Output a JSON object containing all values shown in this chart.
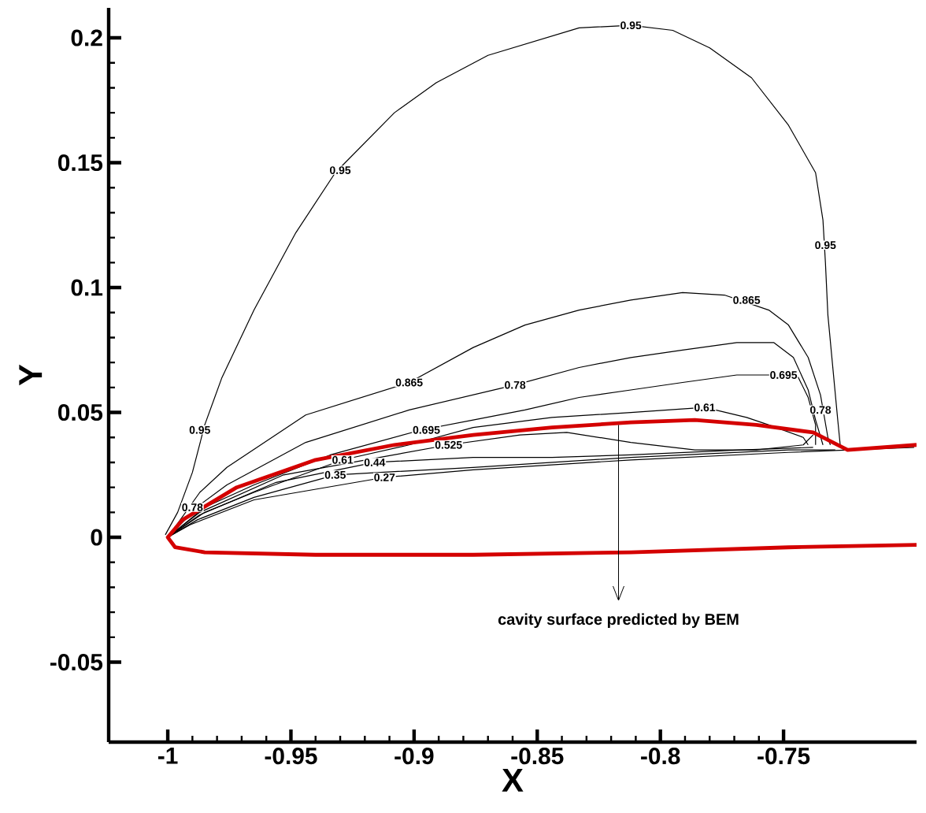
{
  "chart_data": {
    "type": "line",
    "xlabel": "X",
    "ylabel": "Y",
    "xlim": [
      -1.024,
      -0.696
    ],
    "ylim": [
      -0.082,
      0.212
    ],
    "xticks": [
      -1,
      -0.95,
      -0.9,
      -0.85,
      -0.8,
      -0.75
    ],
    "yticks": [
      -0.05,
      0,
      0.05,
      0.1,
      0.15,
      0.2
    ],
    "series": [
      {
        "color": "#000000",
        "x": [
          -1.001,
          -0.996,
          -0.99,
          -0.985,
          -0.978,
          -0.965,
          -0.948,
          -0.932,
          -0.908,
          -0.891,
          -0.87,
          -0.833,
          -0.812,
          -0.795,
          -0.78,
          -0.763,
          -0.748,
          -0.737,
          -0.734,
          -0.733,
          -0.732,
          -0.73,
          -0.728,
          -0.727
        ],
        "values": [
          0.001,
          0.01,
          0.026,
          0.045,
          0.064,
          0.091,
          0.122,
          0.146,
          0.17,
          0.182,
          0.193,
          0.204,
          0.205,
          0.203,
          0.196,
          0.184,
          0.165,
          0.146,
          0.127,
          0.11,
          0.089,
          0.068,
          0.047,
          0.037
        ]
      },
      {
        "color": "#000000",
        "x": [
          -1,
          -0.987,
          -0.976,
          -0.944,
          -0.902,
          -0.876,
          -0.855,
          -0.833,
          -0.812,
          -0.791,
          -0.774,
          -0.756,
          -0.748,
          -0.74,
          -0.735,
          -0.732,
          -0.731
        ],
        "values": [
          0,
          0.018,
          0.028,
          0.049,
          0.062,
          0.076,
          0.085,
          0.091,
          0.095,
          0.098,
          0.097,
          0.091,
          0.085,
          0.072,
          0.057,
          0.04,
          0.037
        ]
      },
      {
        "color": "#000000",
        "x": [
          -1,
          -0.987,
          -0.976,
          -0.944,
          -0.902,
          -0.859,
          -0.833,
          -0.812,
          -0.791,
          -0.769,
          -0.754,
          -0.746,
          -0.74,
          -0.737,
          -0.734
        ],
        "values": [
          0,
          0.013,
          0.021,
          0.038,
          0.051,
          0.061,
          0.068,
          0.072,
          0.075,
          0.078,
          0.078,
          0.072,
          0.059,
          0.047,
          0.037
        ]
      },
      {
        "color": "#000000",
        "x": [
          -1,
          -0.985,
          -0.965,
          -0.934,
          -0.897,
          -0.876,
          -0.855,
          -0.833,
          -0.812,
          -0.791,
          -0.769,
          -0.75,
          -0.744,
          -0.74,
          -0.737,
          -0.737
        ],
        "values": [
          0,
          0.012,
          0.021,
          0.033,
          0.043,
          0.047,
          0.051,
          0.056,
          0.059,
          0.062,
          0.065,
          0.065,
          0.064,
          0.056,
          0.045,
          0.037
        ]
      },
      {
        "color": "#000000",
        "x": [
          -1,
          -0.985,
          -0.965,
          -0.929,
          -0.902,
          -0.876,
          -0.844,
          -0.812,
          -0.782,
          -0.765,
          -0.756,
          -0.742,
          -0.74
        ],
        "values": [
          0,
          0.01,
          0.018,
          0.031,
          0.037,
          0.044,
          0.048,
          0.05,
          0.052,
          0.048,
          0.045,
          0.04,
          0.037
        ]
      },
      {
        "color": "#000000",
        "x": [
          -1,
          -0.987,
          -0.953,
          -0.914,
          -0.886,
          -0.857,
          -0.838,
          -0.812,
          -0.786,
          -0.761,
          -0.742,
          -0.738
        ],
        "values": [
          0,
          0.01,
          0.025,
          0.032,
          0.037,
          0.041,
          0.042,
          0.038,
          0.035,
          0.035,
          0.037,
          0.041
        ]
      },
      {
        "color": "#000000",
        "x": [
          -1,
          -0.987,
          -0.956,
          -0.916,
          -0.876,
          -0.844,
          -0.812,
          -0.767,
          -0.738
        ],
        "values": [
          0,
          0.009,
          0.022,
          0.03,
          0.032,
          0.032,
          0.033,
          0.035,
          0.036
        ]
      },
      {
        "color": "#000000",
        "x": [
          -1,
          -0.988,
          -0.965,
          -0.932,
          -0.876,
          -0.812,
          -0.748,
          -0.729
        ],
        "values": [
          0,
          0.007,
          0.016,
          0.025,
          0.028,
          0.032,
          0.035,
          0.035
        ]
      },
      {
        "color": "#000000",
        "x": [
          -1,
          -0.991,
          -0.965,
          -0.912,
          -0.876,
          -0.812,
          -0.748,
          -0.697
        ],
        "values": [
          0,
          0.005,
          0.015,
          0.024,
          0.027,
          0.031,
          0.034,
          0.036
        ]
      },
      {
        "color": "#d40000",
        "x": [
          -0.696,
          -0.748,
          -0.812,
          -0.876,
          -0.94,
          -0.985,
          -0.997,
          -1,
          -0.994,
          -0.972,
          -0.94,
          -0.908,
          -0.876,
          -0.844,
          -0.812,
          -0.786,
          -0.761,
          -0.738,
          -0.724,
          -0.696
        ],
        "values": [
          -0.003,
          -0.004,
          -0.006,
          -0.007,
          -0.007,
          -0.006,
          -0.004,
          0,
          0.007,
          0.02,
          0.031,
          0.037,
          0.041,
          0.044,
          0.046,
          0.047,
          0.045,
          0.042,
          0.035,
          0.037
        ]
      }
    ],
    "annotations": [
      {
        "text": "cavity surface predicted by BEM",
        "x": -0.817,
        "y": 0.045
      },
      {
        "text": "0.95",
        "x": -0.987,
        "y": 0.043
      },
      {
        "text": "0.95",
        "x": -0.93,
        "y": 0.147
      },
      {
        "text": "0.95",
        "x": -0.812,
        "y": 0.205
      },
      {
        "text": "0.95",
        "x": -0.733,
        "y": 0.117
      },
      {
        "text": "0.865",
        "x": -0.902,
        "y": 0.062
      },
      {
        "text": "0.865",
        "x": -0.765,
        "y": 0.095
      },
      {
        "text": "0.78",
        "x": -0.859,
        "y": 0.061
      },
      {
        "text": "0.78",
        "x": -0.99,
        "y": 0.012
      },
      {
        "text": "0.78",
        "x": -0.735,
        "y": 0.051
      },
      {
        "text": "0.695",
        "x": -0.895,
        "y": 0.043
      },
      {
        "text": "0.695",
        "x": -0.75,
        "y": 0.065
      },
      {
        "text": "0.61",
        "x": -0.929,
        "y": 0.031
      },
      {
        "text": "0.61",
        "x": -0.782,
        "y": 0.052
      },
      {
        "text": "0.525",
        "x": -0.886,
        "y": 0.037
      },
      {
        "text": "0.44",
        "x": -0.916,
        "y": 0.03
      },
      {
        "text": "0.35",
        "x": -0.932,
        "y": 0.025
      },
      {
        "text": "0.27",
        "x": -0.912,
        "y": 0.024
      }
    ]
  }
}
